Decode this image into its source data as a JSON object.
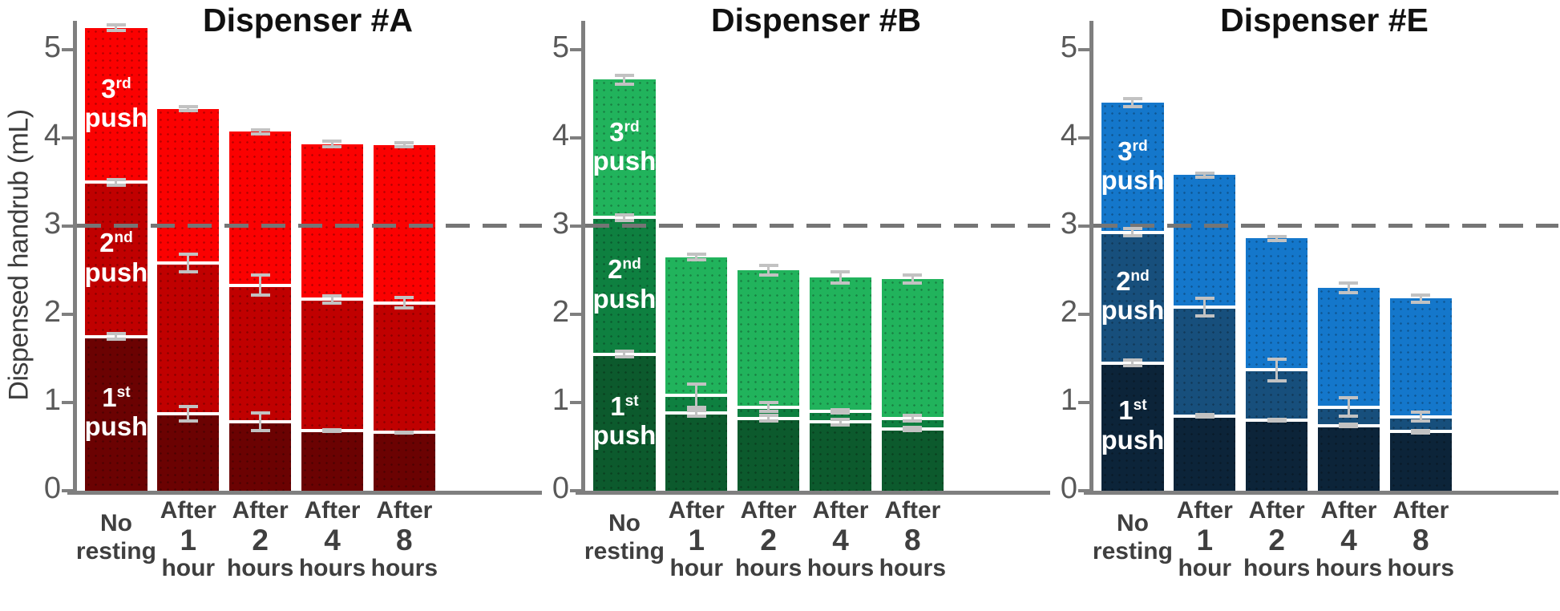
{
  "ylabel": "Dispensed handrub (mL)",
  "axis": {
    "ticks": [
      0,
      1,
      2,
      3,
      4,
      5
    ],
    "range": [
      0,
      5.4
    ],
    "axis_color": "#7f7f7f",
    "tick_label_color": "#595959"
  },
  "reference_line": {
    "value": 3,
    "style": "dashed",
    "color": "#757575"
  },
  "error_bar_color": "#c2c2c2",
  "text_color": "#3f3f3f",
  "series_labels": [
    {
      "num": "1",
      "sup": "st",
      "word": "push"
    },
    {
      "num": "2",
      "sup": "nd",
      "word": "push"
    },
    {
      "num": "3",
      "sup": "rd",
      "word": "push"
    }
  ],
  "chart_data": [
    {
      "type": "bar",
      "stacked": true,
      "title": "Dispenser #A",
      "colors": [
        "#6B0202",
        "#C00000",
        "#FB0101"
      ],
      "categories": [
        {
          "label": "No resting",
          "lines": [
            "No",
            "resting"
          ],
          "big": -1
        },
        {
          "label": "After 1 hour",
          "lines": [
            "After",
            "1",
            "hour"
          ],
          "big": 1
        },
        {
          "label": "After 2 hours",
          "lines": [
            "After",
            "2",
            "hours"
          ],
          "big": 1
        },
        {
          "label": "After 4 hours",
          "lines": [
            "After",
            "4",
            "hours"
          ],
          "big": 1
        },
        {
          "label": "After 8 hours",
          "lines": [
            "After",
            "8",
            "hours"
          ],
          "big": 1
        }
      ],
      "series": [
        {
          "name": "1st push",
          "values": [
            1.75,
            0.87,
            0.78,
            0.68,
            0.66
          ],
          "errors": [
            0.05,
            0.1,
            0.12,
            0.03,
            0.02
          ]
        },
        {
          "name": "2nd push",
          "values": [
            1.75,
            1.71,
            1.55,
            1.49,
            1.47
          ],
          "errors": [
            0.05,
            0.12,
            0.13,
            0.06,
            0.08
          ]
        },
        {
          "name": "3rd push",
          "values": [
            1.75,
            1.75,
            1.74,
            1.76,
            1.79
          ],
          "errors": [
            0.05,
            0.04,
            0.04,
            0.05,
            0.04
          ]
        }
      ]
    },
    {
      "type": "bar",
      "stacked": true,
      "title": "Dispenser #B",
      "colors": [
        "#0C5A2D",
        "#0E8040",
        "#21B35C"
      ],
      "categories": [
        {
          "label": "No resting",
          "lines": [
            "No",
            "resting"
          ],
          "big": -1
        },
        {
          "label": "After 1 hour",
          "lines": [
            "After",
            "1",
            "hour"
          ],
          "big": 1
        },
        {
          "label": "After 2 hours",
          "lines": [
            "After",
            "2",
            "hours"
          ],
          "big": 1
        },
        {
          "label": "After 4 hours",
          "lines": [
            "After",
            "4",
            "hours"
          ],
          "big": 1
        },
        {
          "label": "After 8 hours",
          "lines": [
            "After",
            "8",
            "hours"
          ],
          "big": 1
        }
      ],
      "series": [
        {
          "name": "1st push",
          "values": [
            1.55,
            0.88,
            0.82,
            0.78,
            0.7
          ],
          "errors": [
            0.05,
            0.05,
            0.05,
            0.05,
            0.04
          ]
        },
        {
          "name": "2nd push",
          "values": [
            1.55,
            0.2,
            0.13,
            0.12,
            0.12
          ],
          "errors": [
            0.05,
            0.15,
            0.07,
            0.04,
            0.05
          ]
        },
        {
          "name": "3rd push",
          "values": [
            1.56,
            1.57,
            1.55,
            1.52,
            1.58
          ],
          "errors": [
            0.07,
            0.05,
            0.07,
            0.08,
            0.06
          ]
        }
      ]
    },
    {
      "type": "bar",
      "stacked": true,
      "title": "Dispenser #E",
      "colors": [
        "#0C2439",
        "#174F7C",
        "#1477CB"
      ],
      "categories": [
        {
          "label": "No resting",
          "lines": [
            "No",
            "resting"
          ],
          "big": -1
        },
        {
          "label": "After 1 hour",
          "lines": [
            "After",
            "1",
            "hour"
          ],
          "big": 1
        },
        {
          "label": "After 2 hours",
          "lines": [
            "After",
            "2",
            "hours"
          ],
          "big": 1
        },
        {
          "label": "After 4 hours",
          "lines": [
            "After",
            "4",
            "hours"
          ],
          "big": 1
        },
        {
          "label": "After 8 hours",
          "lines": [
            "After",
            "8",
            "hours"
          ],
          "big": 1
        }
      ],
      "series": [
        {
          "name": "1st push",
          "values": [
            1.45,
            0.85,
            0.8,
            0.74,
            0.67
          ],
          "errors": [
            0.05,
            0.03,
            0.03,
            0.03,
            0.03
          ]
        },
        {
          "name": "2nd push",
          "values": [
            1.48,
            1.23,
            0.57,
            0.21,
            0.17
          ],
          "errors": [
            0.06,
            0.12,
            0.14,
            0.12,
            0.07
          ]
        },
        {
          "name": "3rd push",
          "values": [
            1.47,
            1.5,
            1.49,
            1.35,
            1.34
          ],
          "errors": [
            0.06,
            0.04,
            0.04,
            0.07,
            0.06
          ]
        }
      ]
    }
  ]
}
